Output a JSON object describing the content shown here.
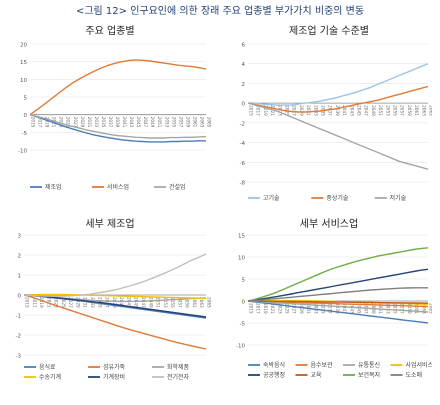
{
  "title": "<그림 12> 인구요인에 의한 장래 주요 업종별 부가가치 비중의 변동",
  "colors": {
    "blue": "#4a7ebb",
    "orange": "#e07b39",
    "gray": "#a6a6a6",
    "darkgray": "#7f7f7f",
    "yellow": "#f2c200",
    "navy": "#264478",
    "lightblue": "#9dc3e6",
    "green": "#70ad47",
    "darkorange": "#c55a11",
    "darkgreen": "#548235",
    "lightgray": "#bfbfbf"
  },
  "chart_data": [
    {
      "type": "line",
      "title": "주요 업종별",
      "x": [
        "2015",
        "2017",
        "2019",
        "2021",
        "2023",
        "2025",
        "2027",
        "2029",
        "2031",
        "2033",
        "2035",
        "2037",
        "2039",
        "2041",
        "2043",
        "2045",
        "2047",
        "2049",
        "2051",
        "2053",
        "2055",
        "2057",
        "2059",
        "2061",
        "2063",
        "2065"
      ],
      "ylim": [
        -10,
        20
      ],
      "yticks": [
        -10,
        -5,
        0,
        5,
        10,
        15,
        20
      ],
      "series": [
        {
          "name": "제조업",
          "color": "#4a7ebb",
          "values": [
            0,
            -0.6,
            -1.3,
            -2,
            -2.7,
            -3.4,
            -4,
            -4.6,
            -5.2,
            -5.7,
            -6.1,
            -6.5,
            -6.8,
            -7.1,
            -7.3,
            -7.5,
            -7.6,
            -7.7,
            -7.7,
            -7.7,
            -7.6,
            -7.6,
            -7.5,
            -7.5,
            -7.4,
            -7.4
          ]
        },
        {
          "name": "서비스업",
          "color": "#e07b39",
          "values": [
            0,
            1.4,
            2.9,
            4.4,
            6,
            7.5,
            8.9,
            10.1,
            11.2,
            12.2,
            13.1,
            13.9,
            14.5,
            15,
            15.3,
            15.5,
            15.4,
            15.2,
            14.9,
            14.6,
            14.3,
            14,
            13.8,
            13.6,
            13.3,
            12.9
          ]
        },
        {
          "name": "건설업",
          "color": "#a6a6a6",
          "values": [
            0,
            -0.5,
            -1,
            -1.6,
            -2.2,
            -2.8,
            -3.3,
            -3.8,
            -4.3,
            -4.7,
            -5.1,
            -5.5,
            -5.8,
            -6,
            -6.2,
            -6.4,
            -6.5,
            -6.6,
            -6.6,
            -6.6,
            -6.5,
            -6.5,
            -6.4,
            -6.4,
            -6.3,
            -6.2
          ]
        }
      ]
    },
    {
      "type": "line",
      "title": "제조업 기술 수준별",
      "x": [
        "2015",
        "2017",
        "2019",
        "2021",
        "2023",
        "2025",
        "2027",
        "2029",
        "2031",
        "2033",
        "2035",
        "2037",
        "2039",
        "2041",
        "2043",
        "2045",
        "2047",
        "2049",
        "2051",
        "2053",
        "2055",
        "2057",
        "2059",
        "2061",
        "2063",
        "2065"
      ],
      "ylim": [
        -8,
        6
      ],
      "yticks": [
        -8,
        -6,
        -4,
        -2,
        0,
        2,
        4,
        6
      ],
      "series": [
        {
          "name": "고기술",
          "color": "#9dc3e6",
          "values": [
            0,
            0,
            -0.1,
            -0.15,
            -0.2,
            -0.2,
            -0.2,
            -0.1,
            0,
            0.1,
            0.2,
            0.35,
            0.5,
            0.7,
            0.9,
            1.1,
            1.35,
            1.6,
            1.9,
            2.2,
            2.5,
            2.8,
            3.1,
            3.4,
            3.7,
            4
          ]
        },
        {
          "name": "중상기술",
          "color": "#e07b39",
          "values": [
            0,
            -0.15,
            -0.3,
            -0.45,
            -0.6,
            -0.75,
            -0.85,
            -0.9,
            -0.9,
            -0.85,
            -0.8,
            -0.7,
            -0.6,
            -0.45,
            -0.3,
            -0.15,
            0,
            0.15,
            0.3,
            0.5,
            0.7,
            0.9,
            1.1,
            1.3,
            1.5,
            1.7
          ]
        },
        {
          "name": "저기술",
          "color": "#a6a6a6",
          "values": [
            0,
            -0.2,
            -0.4,
            -0.6,
            -0.8,
            -1.1,
            -1.4,
            -1.7,
            -2,
            -2.3,
            -2.6,
            -2.9,
            -3.2,
            -3.5,
            -3.8,
            -4.1,
            -4.4,
            -4.7,
            -5,
            -5.3,
            -5.6,
            -5.9,
            -6.1,
            -6.3,
            -6.5,
            -6.7
          ]
        }
      ]
    },
    {
      "type": "line",
      "title": "세부 제조업",
      "x": [
        "2015",
        "2017",
        "2019",
        "2021",
        "2023",
        "2025",
        "2027",
        "2029",
        "2031",
        "2033",
        "2035",
        "2037",
        "2039",
        "2041",
        "2043",
        "2045",
        "2047",
        "2049",
        "2051",
        "2053",
        "2055",
        "2057",
        "2059",
        "2061",
        "2063",
        "2065"
      ],
      "ylim": [
        -3,
        3
      ],
      "yticks": [
        -3,
        -2,
        -1,
        0,
        1,
        2,
        3
      ],
      "series": [
        {
          "name": "음식료",
          "color": "#4a7ebb",
          "values": [
            0,
            -0.03,
            -0.06,
            -0.1,
            -0.14,
            -0.18,
            -0.22,
            -0.26,
            -0.3,
            -0.35,
            -0.4,
            -0.45,
            -0.5,
            -0.55,
            -0.6,
            -0.65,
            -0.7,
            -0.75,
            -0.8,
            -0.85,
            -0.9,
            -0.95,
            -1,
            -1.05,
            -1.1,
            -1.15
          ]
        },
        {
          "name": "섬유가죽",
          "color": "#e07b39",
          "values": [
            0,
            -0.1,
            -0.22,
            -0.35,
            -0.48,
            -0.6,
            -0.72,
            -0.84,
            -0.96,
            -1.08,
            -1.2,
            -1.32,
            -1.44,
            -1.56,
            -1.67,
            -1.78,
            -1.88,
            -1.98,
            -2.08,
            -2.18,
            -2.28,
            -2.37,
            -2.46,
            -2.54,
            -2.62,
            -2.7
          ]
        },
        {
          "name": "화학제품",
          "color": "#a6a6a6",
          "values": [
            0,
            -0.02,
            -0.05,
            -0.08,
            -0.11,
            -0.14,
            -0.17,
            -0.2,
            -0.23,
            -0.26,
            -0.28,
            -0.3,
            -0.31,
            -0.32,
            -0.32,
            -0.32,
            -0.31,
            -0.3,
            -0.28,
            -0.26,
            -0.24,
            -0.22,
            -0.2,
            -0.18,
            -0.16,
            -0.15
          ]
        },
        {
          "name": "수송기계",
          "color": "#f2c200",
          "values": [
            0,
            0.01,
            0.02,
            0.03,
            0.03,
            0.03,
            0.02,
            0.01,
            0,
            -0.01,
            -0.02,
            -0.03,
            -0.04,
            -0.05,
            -0.06,
            -0.07,
            -0.08,
            -0.09,
            -0.1,
            -0.11,
            -0.12,
            -0.13,
            -0.14,
            -0.15,
            -0.16,
            -0.17
          ]
        },
        {
          "name": "기계장비",
          "color": "#264478",
          "values": [
            0,
            -0.02,
            -0.05,
            -0.08,
            -0.12,
            -0.16,
            -0.2,
            -0.24,
            -0.28,
            -0.32,
            -0.36,
            -0.4,
            -0.45,
            -0.5,
            -0.55,
            -0.6,
            -0.65,
            -0.7,
            -0.75,
            -0.8,
            -0.85,
            -0.9,
            -0.95,
            -1,
            -1.05,
            -1.1
          ]
        },
        {
          "name": "전기전자",
          "color": "#bfbfbf",
          "values": [
            0,
            -0.02,
            -0.04,
            -0.05,
            -0.06,
            -0.06,
            -0.05,
            -0.03,
            0,
            0.04,
            0.09,
            0.15,
            0.22,
            0.3,
            0.4,
            0.5,
            0.62,
            0.75,
            0.89,
            1.04,
            1.2,
            1.37,
            1.55,
            1.73,
            1.88,
            2.05
          ]
        }
      ]
    },
    {
      "type": "line",
      "title": "세부 서비스업",
      "x": [
        "2015",
        "2017",
        "2019",
        "2021",
        "2023",
        "2025",
        "2027",
        "2029",
        "2031",
        "2033",
        "2035",
        "2037",
        "2039",
        "2041",
        "2043",
        "2045",
        "2047",
        "2049",
        "2051",
        "2053",
        "2055",
        "2057",
        "2059",
        "2061",
        "2063",
        "2065"
      ],
      "ylim": [
        -10,
        15
      ],
      "yticks": [
        -10,
        -5,
        0,
        5,
        10,
        15
      ],
      "series": [
        {
          "name": "숙박음식",
          "color": "#4a7ebb",
          "values": [
            0,
            -0.2,
            -0.4,
            -0.6,
            -0.8,
            -1,
            -1.2,
            -1.4,
            -1.6,
            -1.8,
            -2,
            -2.2,
            -2.4,
            -2.6,
            -2.8,
            -3,
            -3.2,
            -3.4,
            -3.6,
            -3.8,
            -4,
            -4.2,
            -4.4,
            -4.6,
            -4.8,
            -5
          ]
        },
        {
          "name": "음수보관",
          "color": "#e07b39",
          "values": [
            0,
            -0.05,
            -0.1,
            -0.15,
            -0.2,
            -0.25,
            -0.3,
            -0.35,
            -0.4,
            -0.45,
            -0.5,
            -0.55,
            -0.6,
            -0.65,
            -0.7,
            -0.75,
            -0.8,
            -0.85,
            -0.9,
            -0.95,
            -1,
            -1.05,
            -1.1,
            -1.15,
            -1.2,
            -1.25
          ]
        },
        {
          "name": "유통통신",
          "color": "#a6a6a6",
          "values": [
            0,
            -0.1,
            -0.2,
            -0.3,
            -0.4,
            -0.5,
            -0.6,
            -0.7,
            -0.8,
            -0.9,
            -1,
            -1.1,
            -1.2,
            -1.3,
            -1.4,
            -1.5,
            -1.6,
            -1.7,
            -1.8,
            -1.9,
            -2,
            -2.1,
            -2.2,
            -2.3,
            -2.4,
            -2.5
          ]
        },
        {
          "name": "사업서비스",
          "color": "#f2c200",
          "values": [
            0,
            0.02,
            0.04,
            0.06,
            0.08,
            0.1,
            0.1,
            0.1,
            0.08,
            0.05,
            0,
            -0.05,
            -0.1,
            -0.15,
            -0.2,
            -0.25,
            -0.3,
            -0.35,
            -0.4,
            -0.45,
            -0.5,
            -0.55,
            -0.6,
            -0.65,
            -0.7,
            -0.75
          ]
        },
        {
          "name": "공공행정",
          "color": "#264478",
          "values": [
            0,
            0.25,
            0.5,
            0.75,
            1,
            1.3,
            1.6,
            1.9,
            2.2,
            2.5,
            2.8,
            3.1,
            3.4,
            3.7,
            4,
            4.3,
            4.6,
            4.9,
            5.2,
            5.5,
            5.8,
            6.1,
            6.4,
            6.7,
            7,
            7.2
          ]
        },
        {
          "name": "교육",
          "color": "#c55a11",
          "values": [
            0,
            -0.02,
            -0.04,
            -0.06,
            -0.08,
            -0.1,
            -0.12,
            -0.14,
            -0.16,
            -0.18,
            -0.2,
            -0.22,
            -0.24,
            -0.26,
            -0.28,
            -0.3,
            -0.32,
            -0.34,
            -0.36,
            -0.38,
            -0.4,
            -0.42,
            -0.44,
            -0.46,
            -0.48,
            -0.5
          ]
        },
        {
          "name": "보건복지",
          "color": "#70ad47",
          "values": [
            0,
            0.4,
            0.9,
            1.4,
            2,
            2.7,
            3.4,
            4.1,
            4.8,
            5.5,
            6.2,
            6.9,
            7.5,
            8,
            8.5,
            9,
            9.4,
            9.8,
            10.2,
            10.5,
            10.8,
            11.1,
            11.4,
            11.7,
            11.9,
            12.1
          ]
        },
        {
          "name": "도소매",
          "color": "#7f7f7f",
          "values": [
            0,
            0.1,
            0.25,
            0.4,
            0.55,
            0.7,
            0.85,
            1,
            1.15,
            1.3,
            1.45,
            1.6,
            1.75,
            1.9,
            2.05,
            2.2,
            2.35,
            2.5,
            2.6,
            2.7,
            2.8,
            2.9,
            2.95,
            3,
            3,
            3
          ]
        }
      ]
    }
  ]
}
